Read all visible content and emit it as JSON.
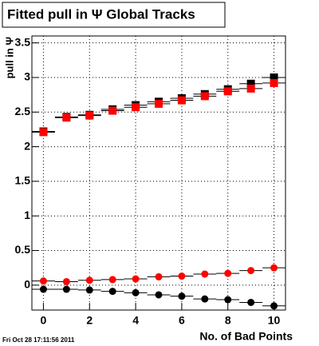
{
  "chart_data": {
    "type": "scatter",
    "title": "Fitted pull in  Ψ   Global Tracks",
    "y_label": "pull in Ψ",
    "x_label": "No. of Bad Points",
    "timestamp": "Fri Oct 28 17:11:56 2011",
    "x": [
      0,
      1,
      2,
      3,
      4,
      5,
      6,
      7,
      8,
      9,
      10
    ],
    "xerr": 0.5,
    "series": [
      {
        "color": "#000000",
        "marker": "square",
        "values": [
          2.22,
          2.43,
          2.46,
          2.54,
          2.6,
          2.65,
          2.7,
          2.76,
          2.83,
          2.91,
          3.0
        ]
      },
      {
        "color": "#ff0000",
        "marker": "square",
        "values": [
          2.21,
          2.42,
          2.45,
          2.52,
          2.57,
          2.62,
          2.67,
          2.73,
          2.8,
          2.84,
          2.92
        ]
      },
      {
        "color": "#ff0000",
        "marker": "circle",
        "values": [
          0.06,
          0.05,
          0.07,
          0.08,
          0.09,
          0.12,
          0.13,
          0.16,
          0.17,
          0.21,
          0.25
        ]
      },
      {
        "color": "#000000",
        "marker": "circle",
        "values": [
          -0.06,
          -0.06,
          -0.07,
          -0.09,
          -0.11,
          -0.14,
          -0.16,
          -0.2,
          -0.21,
          -0.25,
          -0.3
        ]
      }
    ],
    "xlim": [
      -0.5,
      10.5
    ],
    "ylim": [
      -0.36,
      3.6
    ],
    "xticks": [
      0,
      2,
      4,
      6,
      8,
      10
    ],
    "yticks": [
      0,
      0.5,
      1,
      1.5,
      2,
      2.5,
      3,
      3.5
    ],
    "grid": true
  }
}
